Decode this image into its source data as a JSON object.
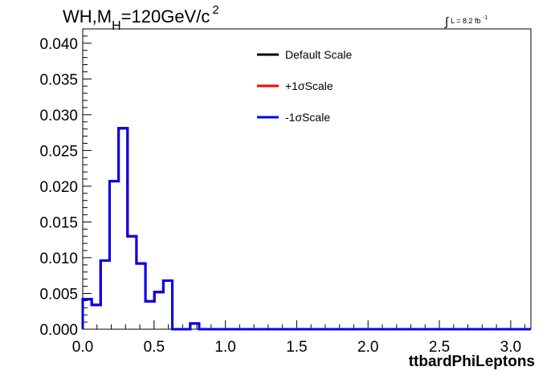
{
  "header": {
    "title_main": "WH,M",
    "title_sub": "H",
    "title_rest": "=120GeV/c",
    "title_sup": "2",
    "lumi_integral": "∫",
    "lumi_text": "L = 8.2 fb",
    "lumi_sup": "-1"
  },
  "chart_data": {
    "type": "line",
    "xlabel": "ttbardPhiLeptons",
    "ylabel": "",
    "xlim": [
      0,
      3.1416
    ],
    "ylim": [
      0,
      0.042
    ],
    "x_ticks": [
      "0.0",
      "0.5",
      "1.0",
      "1.5",
      "2.0",
      "2.5",
      "3.0"
    ],
    "y_ticks": [
      "0.000",
      "0.005",
      "0.010",
      "0.015",
      "0.020",
      "0.025",
      "0.030",
      "0.035",
      "0.040"
    ],
    "grid": false,
    "legend_position": "top-center",
    "bin_width": 0.0628,
    "series": [
      {
        "name": "Default Scale",
        "color": "#000000",
        "values": [
          0.0042,
          0.0034,
          0.0096,
          0.0207,
          0.0281,
          0.013,
          0.0092,
          0.0039,
          0.0052,
          0.0068,
          0.0,
          0.0,
          0.0008,
          0.0,
          0.0,
          0.0,
          0.0,
          0.0,
          0.0,
          0.0,
          0.0,
          0.0,
          0.0,
          0.0,
          0.0,
          0.0,
          0.0,
          0.0,
          0.0,
          0.0,
          0.0,
          0.0,
          0.0,
          0.0,
          0.0,
          0.0,
          0.0,
          0.0,
          0.0,
          0.0,
          0.0,
          0.0,
          0.0,
          0.0,
          0.0,
          0.0,
          0.0,
          0.0,
          0.0,
          0.0
        ]
      },
      {
        "name": "+1σScale",
        "color": "#ff0000",
        "values": [
          0.0042,
          0.0034,
          0.0096,
          0.0207,
          0.0281,
          0.013,
          0.0092,
          0.0039,
          0.0052,
          0.0068,
          0.0,
          0.0,
          0.0008,
          0.0,
          0.0,
          0.0,
          0.0,
          0.0,
          0.0,
          0.0,
          0.0,
          0.0,
          0.0,
          0.0,
          0.0,
          0.0,
          0.0,
          0.0,
          0.0,
          0.0,
          0.0,
          0.0,
          0.0,
          0.0,
          0.0,
          0.0,
          0.0,
          0.0,
          0.0,
          0.0,
          0.0,
          0.0,
          0.0,
          0.0,
          0.0,
          0.0,
          0.0,
          0.0,
          0.0,
          0.0
        ]
      },
      {
        "name": "-1σScale",
        "color": "#0000ee",
        "values": [
          0.0042,
          0.0034,
          0.0096,
          0.0207,
          0.0281,
          0.013,
          0.0092,
          0.0039,
          0.0052,
          0.0068,
          0.0,
          0.0,
          0.0008,
          0.0,
          0.0,
          0.0,
          0.0,
          0.0,
          0.0,
          0.0,
          0.0,
          0.0,
          0.0,
          0.0,
          0.0,
          0.0,
          0.0,
          0.0,
          0.0,
          0.0,
          0.0,
          0.0,
          0.0,
          0.0,
          0.0,
          0.0,
          0.0,
          0.0,
          0.0,
          0.0,
          0.0,
          0.0,
          0.0,
          0.0,
          0.0,
          0.0,
          0.0,
          0.0,
          0.0,
          0.0
        ]
      }
    ]
  }
}
